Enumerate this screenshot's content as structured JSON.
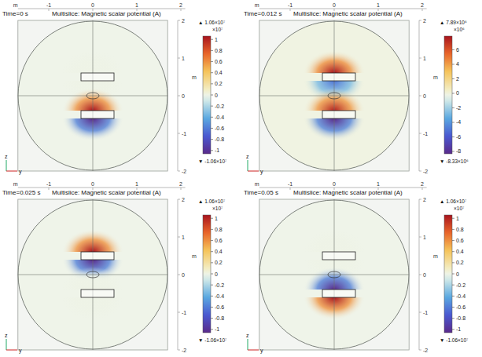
{
  "chart_data": [
    {
      "type": "field",
      "time": "Time=0 s",
      "title": "Multislice: Magnetic scalar potential (A)",
      "x_label": "m",
      "y_label": "m",
      "xlim": [
        -1.7,
        2.1
      ],
      "xticks": [
        -1,
        0,
        1,
        2
      ],
      "ylim": [
        -2,
        2
      ],
      "yticks": [
        2,
        1,
        0,
        -1,
        -2
      ],
      "triad": [
        "z",
        "y"
      ],
      "magnets": [
        {
          "z": 0.5,
          "above": 0,
          "below": 0
        },
        {
          "z": -0.5,
          "above": 1.06,
          "below": -1.06
        }
      ],
      "colorbar": {
        "range": [
          -1.06,
          1.06
        ],
        "ticks": [
          1,
          0.8,
          0.6,
          0.4,
          0.2,
          0,
          -0.2,
          -0.4,
          -0.6,
          -0.8,
          -1
        ],
        "multiplier": "×10⁷",
        "max_label": "▲ 1.06×10⁷",
        "min_label": "▼ -1.06×10⁷"
      }
    },
    {
      "type": "field",
      "time": "Time=0.012 s",
      "title": "Multislice: Magnetic scalar potential (A)",
      "x_label": "m",
      "y_label": "m",
      "xlim": [
        -1.7,
        2.1
      ],
      "xticks": [
        -1,
        0,
        1,
        2
      ],
      "ylim": [
        -2,
        2
      ],
      "yticks": [
        2,
        1,
        0,
        -1,
        -2
      ],
      "triad": [
        "z",
        "y"
      ],
      "magnets": [
        {
          "z": 0.5,
          "above": 7.89,
          "below": -5
        },
        {
          "z": -0.5,
          "above": 7.5,
          "below": -8.33
        }
      ],
      "colorbar": {
        "range": [
          -8.33,
          7.89
        ],
        "ticks": [
          6,
          4,
          2,
          0,
          -2,
          -4,
          -6,
          -8
        ],
        "multiplier": "×10⁶",
        "max_label": "▲ 7.89×10⁶",
        "min_label": "▼ -8.33×10⁶"
      }
    },
    {
      "type": "field",
      "time": "Time=0.025 s",
      "title": "Multislice: Magnetic scalar potential (A)",
      "x_label": "m",
      "y_label": "m",
      "xlim": [
        -1.7,
        2.1
      ],
      "xticks": [
        -1,
        0,
        1,
        2
      ],
      "ylim": [
        -2,
        2
      ],
      "yticks": [
        2,
        1,
        0,
        -1,
        -2
      ],
      "triad": [
        "z",
        "y"
      ],
      "magnets": [
        {
          "z": 0.5,
          "above": 1.06,
          "below": -1.06
        },
        {
          "z": -0.5,
          "above": 0,
          "below": 0
        }
      ],
      "colorbar": {
        "range": [
          -1.06,
          1.06
        ],
        "ticks": [
          1,
          0.8,
          0.6,
          0.4,
          0.2,
          0,
          -0.2,
          -0.4,
          -0.6,
          -0.8,
          -1
        ],
        "multiplier": "×10⁷",
        "max_label": "▲ 1.06×10⁷",
        "min_label": "▼ -1.06×10⁷"
      }
    },
    {
      "type": "field",
      "time": "Time=0.05 s",
      "title": "Multislice: Magnetic scalar potential (A)",
      "x_label": "m",
      "y_label": "m",
      "xlim": [
        -1.7,
        2.1
      ],
      "xticks": [
        -1,
        0,
        1,
        2
      ],
      "ylim": [
        -2,
        2
      ],
      "yticks": [
        2,
        1,
        0,
        -1,
        -2
      ],
      "triad": [
        "z",
        "y"
      ],
      "magnets": [
        {
          "z": 0.5,
          "above": 0,
          "below": 0
        },
        {
          "z": -0.5,
          "above": -1.06,
          "below": 1.06
        }
      ],
      "colorbar": {
        "range": [
          -1.06,
          1.06
        ],
        "ticks": [
          1,
          0.8,
          0.6,
          0.4,
          0.2,
          0,
          -0.2,
          -0.4,
          -0.6,
          -0.8,
          -1
        ],
        "multiplier": "×10⁷",
        "max_label": "▲ 1.06×10⁷",
        "min_label": "▼ -1.06×10⁷"
      }
    }
  ]
}
